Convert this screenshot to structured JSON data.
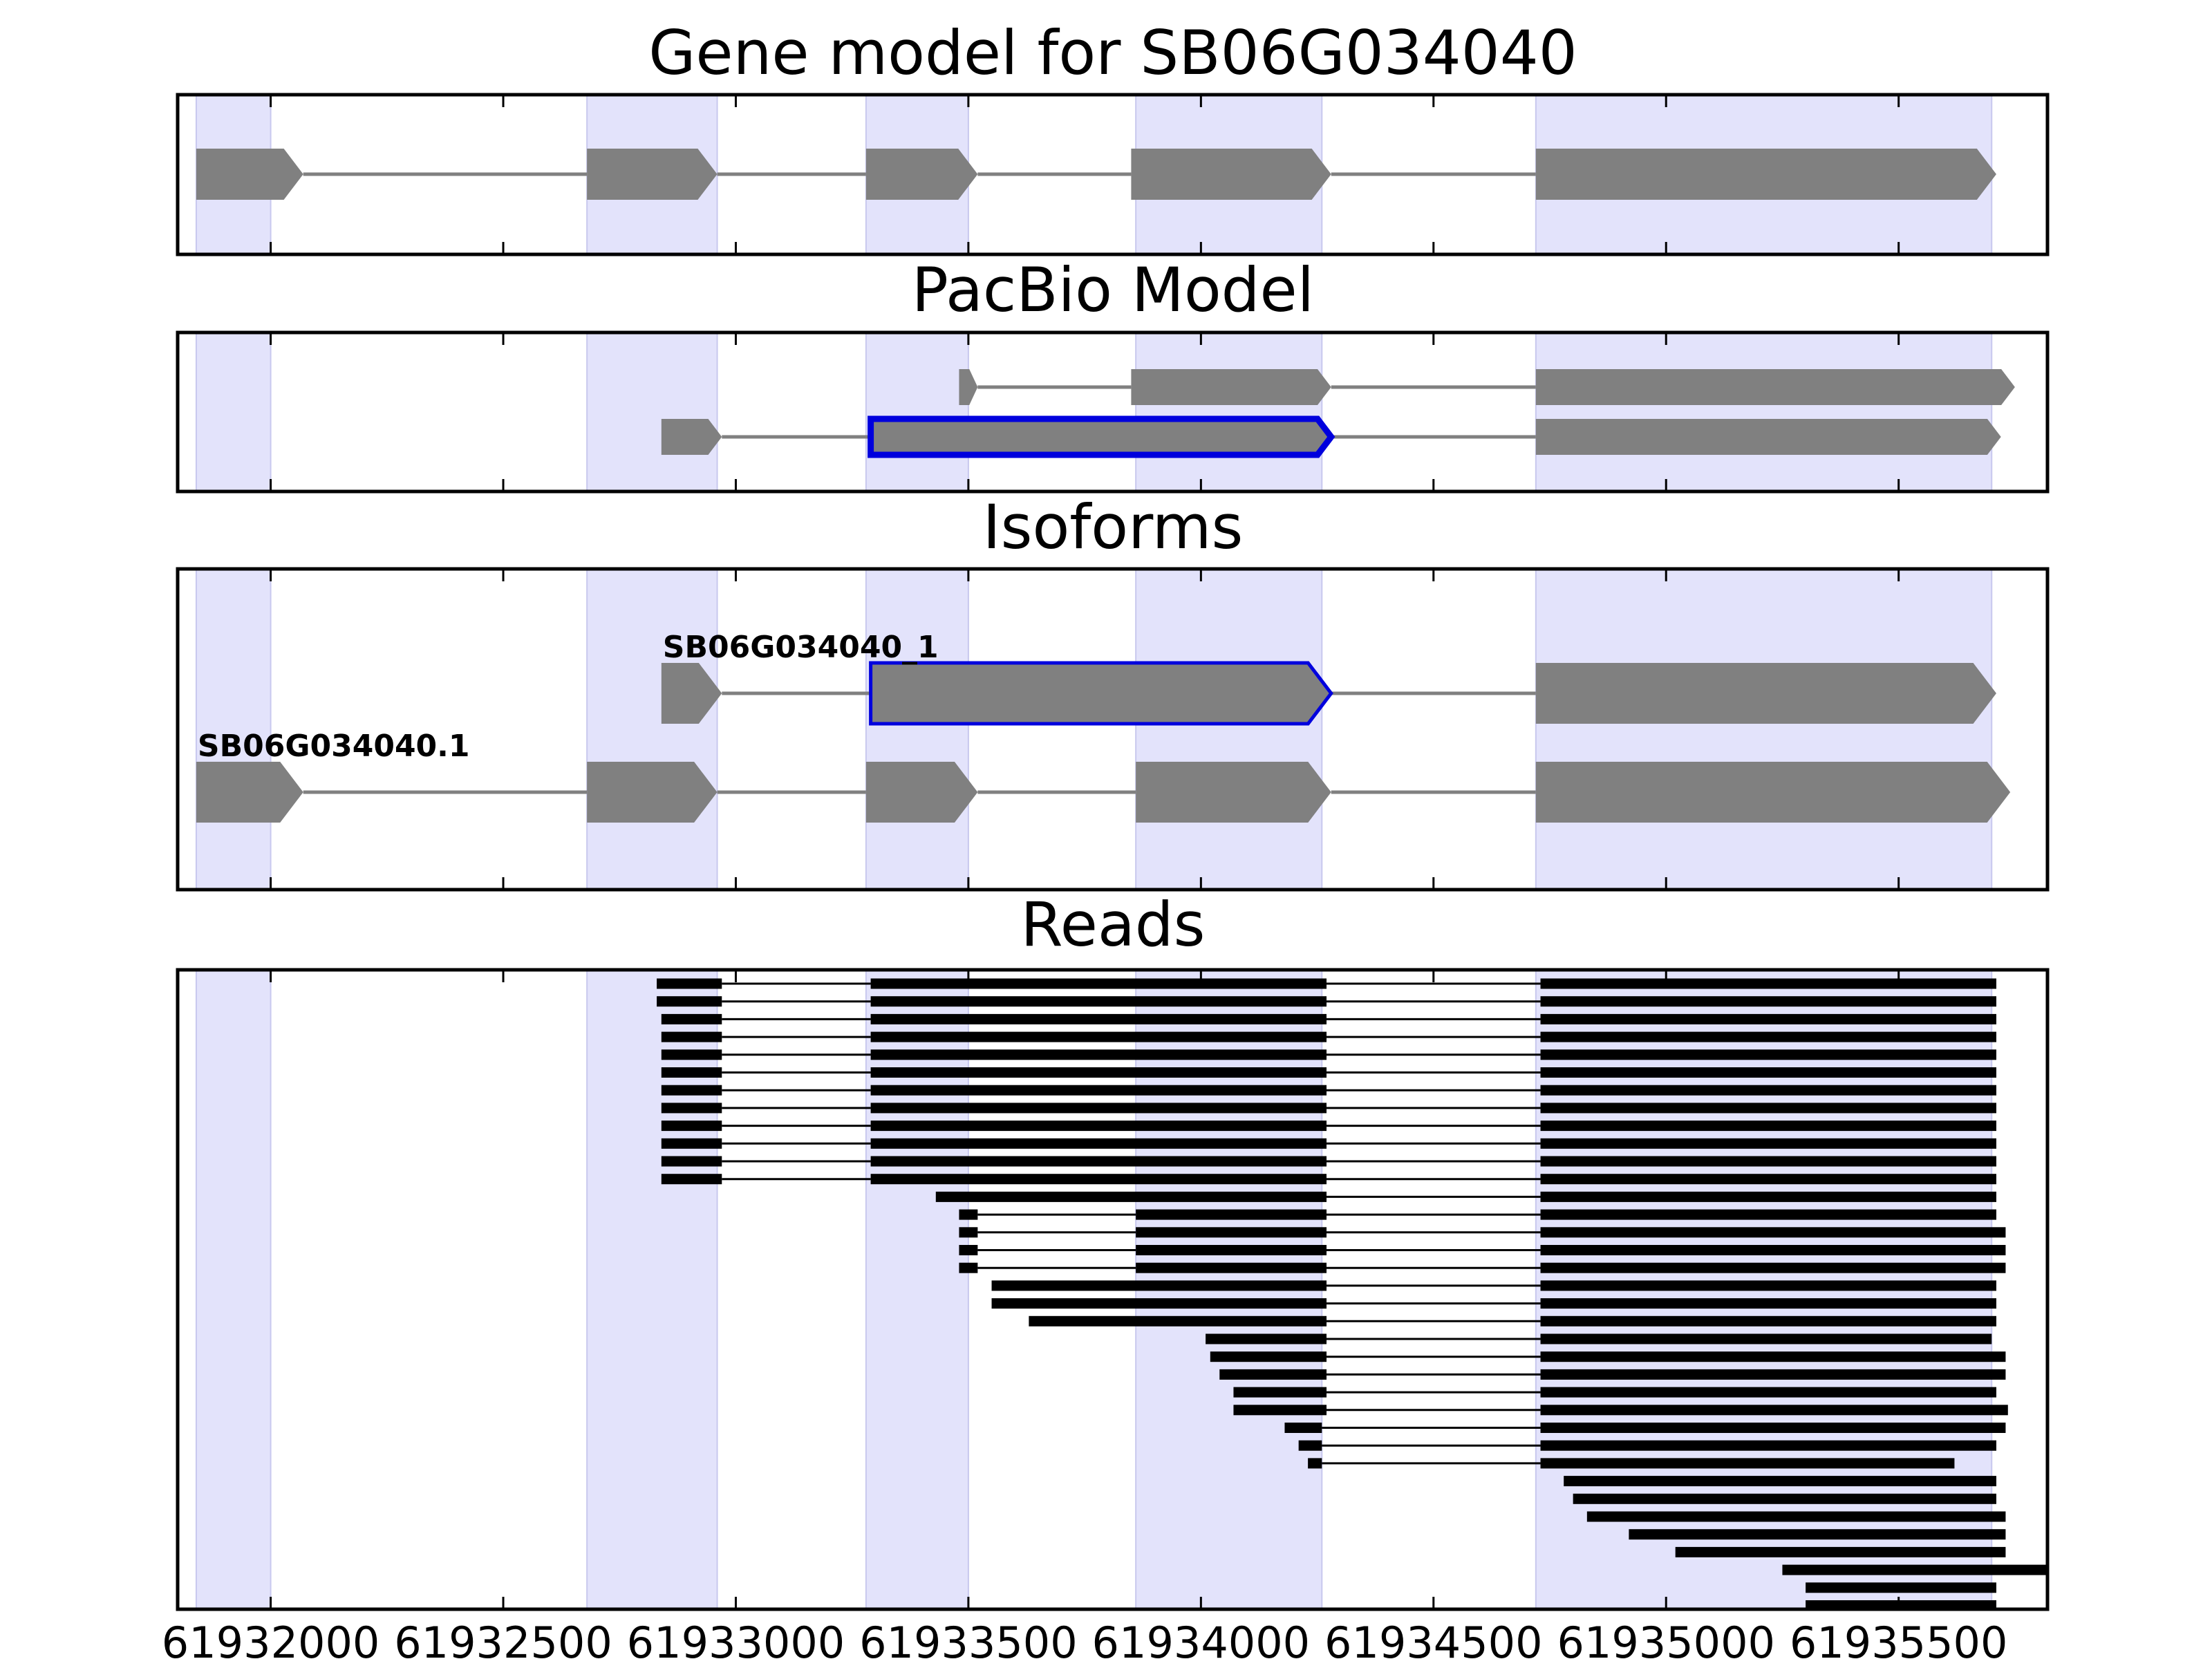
{
  "chart_data": {
    "type": "gene-structure",
    "xlim": [
      61931800,
      61935820
    ],
    "xticks": [
      "61932000",
      "61932500",
      "61933000",
      "61933500",
      "61934000",
      "61934500",
      "61935000",
      "61935500"
    ],
    "highlight_exons": [
      [
        61931840,
        61932000
      ],
      [
        61932680,
        61932960
      ],
      [
        61933280,
        61933500
      ],
      [
        61933860,
        61934260
      ],
      [
        61934720,
        61935700
      ]
    ],
    "colors": {
      "exon": "#808080",
      "intron": "#808080",
      "highlight": "#e3e3fb",
      "selected": "#0000dd",
      "read": "#000000"
    },
    "panels": [
      {
        "id": "gene-model",
        "title": "Gene model for SB06G034040",
        "rows": [
          {
            "exons": [
              [
                61931840,
                61932070
              ],
              [
                61932680,
                61932960
              ],
              [
                61933280,
                61933520
              ],
              [
                61933850,
                61934280
              ],
              [
                61934720,
                61935710
              ]
            ]
          }
        ]
      },
      {
        "id": "pacbio-model",
        "title": "PacBio Model",
        "rows": [
          {
            "exons": [
              [
                61933480,
                61933520
              ],
              [
                61933850,
                61934280
              ],
              [
                61934720,
                61935750
              ]
            ]
          },
          {
            "exons": [
              [
                61932840,
                61932970
              ],
              [
                61933290,
                61934280
              ],
              [
                61934720,
                61935720
              ]
            ],
            "selected": 1
          }
        ]
      },
      {
        "id": "isoforms",
        "title": "Isoforms",
        "rows": [
          {
            "label": "SB06G034040_1",
            "exons": [
              [
                61932840,
                61932970
              ],
              [
                61933290,
                61934280
              ],
              [
                61934720,
                61935710
              ]
            ],
            "selected": 1
          },
          {
            "label": "SB06G034040.1",
            "exons": [
              [
                61931840,
                61932070
              ],
              [
                61932680,
                61932960
              ],
              [
                61933280,
                61933520
              ],
              [
                61933860,
                61934280
              ],
              [
                61934720,
                61935740
              ]
            ]
          }
        ]
      },
      {
        "id": "reads",
        "title": "Reads",
        "rows": [
          {
            "exons": [
              [
                61932830,
                61932970
              ],
              [
                61933290,
                61934270
              ],
              [
                61934730,
                61935710
              ]
            ]
          },
          {
            "exons": [
              [
                61932830,
                61932970
              ],
              [
                61933290,
                61934270
              ],
              [
                61934730,
                61935710
              ]
            ]
          },
          {
            "exons": [
              [
                61932840,
                61932970
              ],
              [
                61933290,
                61934270
              ],
              [
                61934730,
                61935710
              ]
            ]
          },
          {
            "exons": [
              [
                61932840,
                61932970
              ],
              [
                61933290,
                61934270
              ],
              [
                61934730,
                61935710
              ]
            ]
          },
          {
            "exons": [
              [
                61932840,
                61932970
              ],
              [
                61933290,
                61934270
              ],
              [
                61934730,
                61935710
              ]
            ]
          },
          {
            "exons": [
              [
                61932840,
                61932970
              ],
              [
                61933290,
                61934270
              ],
              [
                61934730,
                61935710
              ]
            ]
          },
          {
            "exons": [
              [
                61932840,
                61932970
              ],
              [
                61933290,
                61934270
              ],
              [
                61934730,
                61935710
              ]
            ]
          },
          {
            "exons": [
              [
                61932840,
                61932970
              ],
              [
                61933290,
                61934270
              ],
              [
                61934730,
                61935710
              ]
            ]
          },
          {
            "exons": [
              [
                61932840,
                61932970
              ],
              [
                61933290,
                61934270
              ],
              [
                61934730,
                61935710
              ]
            ]
          },
          {
            "exons": [
              [
                61932840,
                61932970
              ],
              [
                61933290,
                61934270
              ],
              [
                61934730,
                61935710
              ]
            ]
          },
          {
            "exons": [
              [
                61932840,
                61932970
              ],
              [
                61933290,
                61934270
              ],
              [
                61934730,
                61935710
              ]
            ]
          },
          {
            "exons": [
              [
                61932840,
                61932970
              ],
              [
                61933290,
                61934270
              ],
              [
                61934730,
                61935710
              ]
            ]
          },
          {
            "exons": [
              [
                61933430,
                61934270
              ],
              [
                61934730,
                61935710
              ]
            ]
          },
          {
            "exons": [
              [
                61933480,
                61933520
              ],
              [
                61933860,
                61934270
              ],
              [
                61934730,
                61935710
              ]
            ]
          },
          {
            "exons": [
              [
                61933480,
                61933520
              ],
              [
                61933860,
                61934270
              ],
              [
                61934730,
                61935730
              ]
            ]
          },
          {
            "exons": [
              [
                61933480,
                61933520
              ],
              [
                61933860,
                61934270
              ],
              [
                61934730,
                61935730
              ]
            ]
          },
          {
            "exons": [
              [
                61933480,
                61933520
              ],
              [
                61933860,
                61934270
              ],
              [
                61934730,
                61935730
              ]
            ]
          },
          {
            "exons": [
              [
                61933550,
                61934270
              ],
              [
                61934730,
                61935710
              ]
            ]
          },
          {
            "exons": [
              [
                61933550,
                61934270
              ],
              [
                61934730,
                61935710
              ]
            ]
          },
          {
            "exons": [
              [
                61933630,
                61934270
              ],
              [
                61934730,
                61935710
              ]
            ]
          },
          {
            "exons": [
              [
                61934010,
                61934270
              ],
              [
                61934730,
                61935700
              ]
            ]
          },
          {
            "exons": [
              [
                61934020,
                61934270
              ],
              [
                61934730,
                61935730
              ]
            ]
          },
          {
            "exons": [
              [
                61934040,
                61934270
              ],
              [
                61934730,
                61935730
              ]
            ]
          },
          {
            "exons": [
              [
                61934070,
                61934270
              ],
              [
                61934730,
                61935710
              ]
            ]
          },
          {
            "exons": [
              [
                61934070,
                61934270
              ],
              [
                61934730,
                61935735
              ]
            ]
          },
          {
            "exons": [
              [
                61934180,
                61934260
              ],
              [
                61934730,
                61935730
              ]
            ]
          },
          {
            "exons": [
              [
                61934210,
                61934260
              ],
              [
                61934730,
                61935710
              ]
            ]
          },
          {
            "exons": [
              [
                61934230,
                61934260
              ],
              [
                61934730,
                61935620
              ]
            ]
          },
          {
            "exons": [
              [
                61934780,
                61935710
              ]
            ]
          },
          {
            "exons": [
              [
                61934800,
                61935710
              ]
            ]
          },
          {
            "exons": [
              [
                61934830,
                61935730
              ]
            ]
          },
          {
            "exons": [
              [
                61934920,
                61935730
              ]
            ]
          },
          {
            "exons": [
              [
                61935020,
                61935730
              ]
            ]
          },
          {
            "exons": [
              [
                61935250,
                61935820
              ]
            ]
          },
          {
            "exons": [
              [
                61935300,
                61935710
              ]
            ]
          },
          {
            "exons": [
              [
                61935300,
                61935710
              ]
            ]
          }
        ]
      }
    ]
  }
}
